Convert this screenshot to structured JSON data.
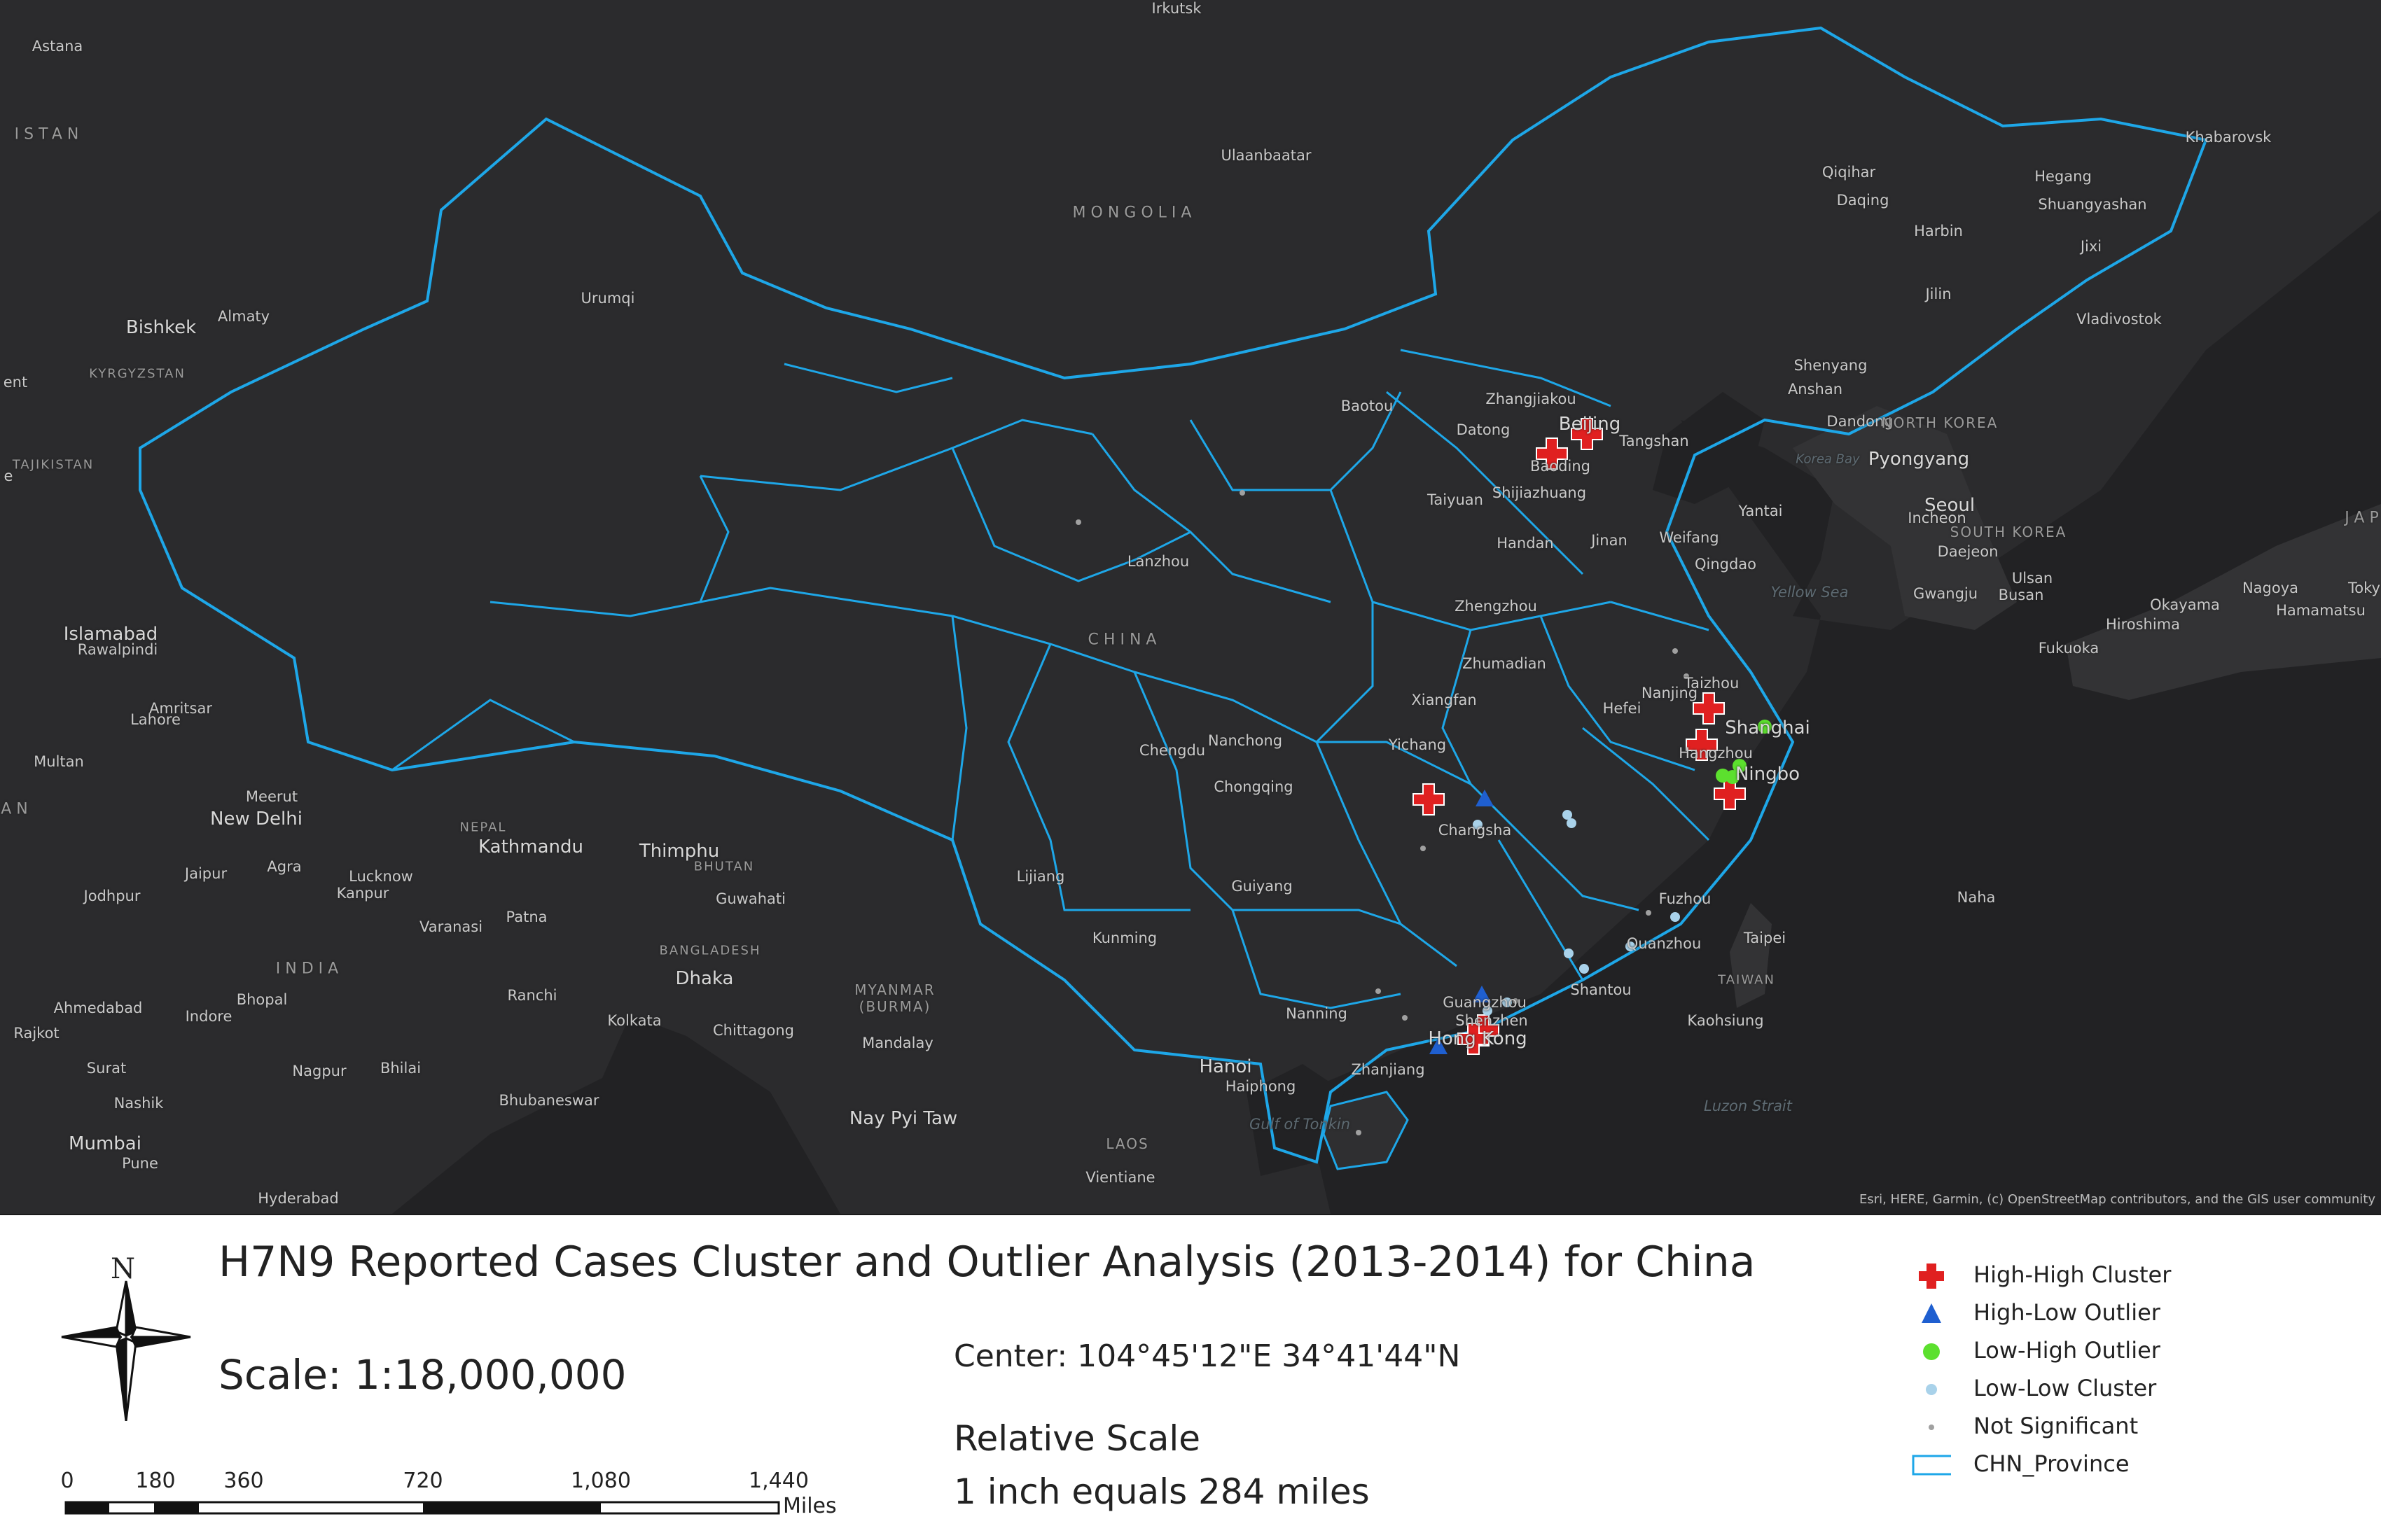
{
  "map": {
    "attribution": "Esri, HERE, Garmin, (c) OpenStreetMap contributors, and the GIS user community",
    "colors": {
      "basemap": "#2b2b2d",
      "sea": "#222224",
      "province_outline": "#1ea7e8",
      "high_high": "#e02020",
      "high_low": "#1f5fd0",
      "low_high": "#5ce02e",
      "low_low": "#a9d2ea",
      "not_significant": "#a0a0a0"
    },
    "labels": {
      "irkutsk": "Irkutsk",
      "astana": "Astana",
      "kazakhstan": "ISTAN",
      "ulaanbaatar": "Ulaanbaatar",
      "mongolia": "MONGOLIA",
      "urumqi": "Urumqi",
      "almaty": "Almaty",
      "bishkek": "Bishkek",
      "kyrgyzstan": "KYRGYZSTAN",
      "tashkent": "ent",
      "tajikistan": "TAJIKISTAN",
      "e": "e",
      "qiqihar": "Qiqihar",
      "daqing": "Daqing",
      "harbin": "Harbin",
      "hegang": "Hegang",
      "shuangyashan": "Shuangyashan",
      "jixi": "Jixi",
      "khabarovsk": "Khabarovsk",
      "jilin": "Jilin",
      "vladivostok": "Vladivostok",
      "shenyang": "Shenyang",
      "anshan": "Anshan",
      "dandong": "Dandong",
      "north_korea": "NORTH KOREA",
      "pyongyang": "Pyongyang",
      "korea_bay": "Korea Bay",
      "seoul": "Seoul",
      "incheon": "Incheon",
      "south_korea": "SOUTH KOREA",
      "daejeon": "Daejeon",
      "gwangju": "Gwangju",
      "ulsan": "Ulsan",
      "busan": "Busan",
      "japan": "JAP",
      "nagoya": "Nagoya",
      "tokyo": "Toky",
      "hamamatsu": "Hamamatsu",
      "okayama": "Okayama",
      "hiroshima": "Hiroshima",
      "fukuoka": "Fukuoka",
      "baotou": "Baotou",
      "zhangjiakou": "Zhangjiakou",
      "beijing": "Beijing",
      "datong": "Datong",
      "baoding": "Baoding",
      "tangshan": "Tangshan",
      "taiyuan": "Taiyuan",
      "shijiazhuang": "Shijiazhuang",
      "yantai": "Yantai",
      "handan": "Handan",
      "jinan": "Jinan",
      "weifang": "Weifang",
      "qingdao": "Qingdao",
      "yellow_sea": "Yellow Sea",
      "lanzhou": "Lanzhou",
      "china": "CHINA",
      "zhengzhou": "Zhengzhou",
      "zhumadian": "Zhumadian",
      "taizhou": "Taizhou",
      "nanjing": "Nanjing",
      "hefei": "Hefei",
      "xiangfan": "Xiangfan",
      "shanghai": "Shanghai",
      "hangzhou": "Hangzhou",
      "ningbo": "Ningbo",
      "chengdu": "Chengdu",
      "nanchong": "Nanchong",
      "yichang": "Yichang",
      "chongqing": "Chongqing",
      "changsha": "Changsha",
      "guiyang": "Guiyang",
      "lijiang": "Lijiang",
      "kunming": "Kunming",
      "fuzhou": "Fuzhou",
      "taipei": "Taipei",
      "naha": "Naha",
      "quanzhou": "Quanzhou",
      "shantou": "Shantou",
      "taiwan": "TAIWAN",
      "kaohsiung": "Kaohsiung",
      "luzon_strait": "Luzon Strait",
      "nanning": "Nanning",
      "guangzhou": "Guangzhou",
      "shenzhen": "Shenzhen",
      "hong_kong": "Hong Kong",
      "zhanjiang": "Zhanjiang",
      "hanoi": "Hanoi",
      "haiphong": "Haiphong",
      "gulf_tonkin": "Gulf of Tonkin",
      "laos": "LAOS",
      "vientiane": "Vientiane",
      "nay_pyi_taw": "Nay Pyi Taw",
      "myanmar": "MYANMAR (BURMA)",
      "mandalay": "Mandalay",
      "chittagong": "Chittagong",
      "kolkata": "Kolkata",
      "dhaka": "Dhaka",
      "bangladesh": "BANGLADESH",
      "guwahati": "Guwahati",
      "bhutan": "BHUTAN",
      "thimphu": "Thimphu",
      "nepal": "NEPAL",
      "kathmandu": "Kathmandu",
      "patna": "Patna",
      "varanasi": "Varanasi",
      "ranchi": "Ranchi",
      "bhubaneswar": "Bhubaneswar",
      "lucknow": "Lucknow",
      "kanpur": "Kanpur",
      "agra": "Agra",
      "jaipur": "Jaipur",
      "new_delhi": "New Delhi",
      "meerut": "Meerut",
      "jodhpur": "Jodhpur",
      "india": "INDIA",
      "bhopal": "Bhopal",
      "indore": "Indore",
      "ahmedabad": "Ahmedabad",
      "nagpur": "Nagpur",
      "bhilai": "Bhilai",
      "surat": "Surat",
      "nashik": "Nashik",
      "mumbai": "Mumbai",
      "pune": "Pune",
      "hyderabad": "Hyderabad",
      "rajkot": "Rajkot",
      "multan": "Multan",
      "lahore": "Lahore",
      "amritsar": "Amritsar",
      "islamabad": "Islamabad",
      "rawalpindi": "Rawalpindi",
      "pakistan": "AN"
    }
  },
  "layout": {
    "title": "H7N9 Reported Cases Cluster and Outlier Analysis (2013-2014) for China",
    "scale": "Scale: 1:18,000,000",
    "center": "Center: 104°45'12\"E 34°41'44\"N",
    "relative_scale_label": "Relative Scale",
    "relative_scale_value": "1 inch equals  284 miles",
    "north_label": "N"
  },
  "scalebar": {
    "ticks": [
      "0",
      "180",
      "360",
      "720",
      "1,080",
      "1,440"
    ],
    "unit": "Miles"
  },
  "legend": {
    "items": [
      {
        "label": "High-High Cluster",
        "icon": "red-cross-icon"
      },
      {
        "label": "High-Low Outlier",
        "icon": "blue-triangle-icon"
      },
      {
        "label": "Low-High Outlier",
        "icon": "green-circle-icon"
      },
      {
        "label": "Low-Low Cluster",
        "icon": "light-blue-circle-icon"
      },
      {
        "label": "Not Significant",
        "icon": "gray-dot-icon"
      },
      {
        "label": "CHN_Province",
        "icon": "province-outline-icon"
      }
    ]
  }
}
